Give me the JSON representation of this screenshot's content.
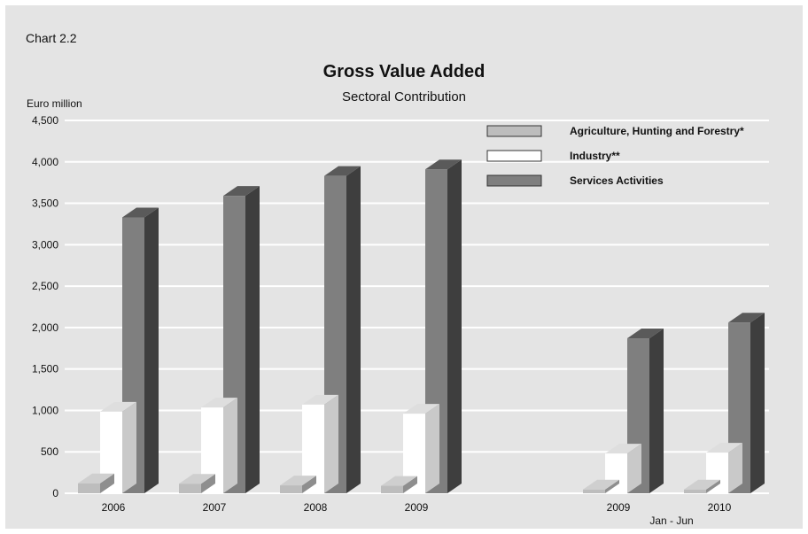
{
  "header": {
    "label": "Chart 2.2",
    "title": "Gross Value Added",
    "subtitle": "Sectoral Contribution",
    "y_unit": "Euro million",
    "footnote": "Jan - Jun"
  },
  "colors": {
    "background": "#e4e4e4",
    "agriculture": "#bdbdbd",
    "industry": "#ffffff",
    "services": "#7f7f7f",
    "services_side": "#3e3e3e"
  },
  "chart_data": {
    "type": "bar",
    "title": "Gross Value Added",
    "subtitle": "Sectoral Contribution",
    "ylabel": "Euro million",
    "xlabel": "",
    "categories": [
      "2006",
      "2007",
      "2008",
      "2009",
      "2009",
      "2010"
    ],
    "category_note": "Jan - Jun",
    "ylim": [
      0,
      4500
    ],
    "yticks": [
      "0",
      "500",
      "1,000",
      "1,500",
      "2,000",
      "2,500",
      "3,000",
      "3,500",
      "4,000",
      "4,500"
    ],
    "grid": true,
    "legend_position": "top-right",
    "series": [
      {
        "name": "Agriculture, Hunting and Forestry*",
        "values": [
          120,
          115,
          95,
          90,
          45,
          45
        ]
      },
      {
        "name": "Industry**",
        "values": [
          985,
          1035,
          1070,
          960,
          480,
          490
        ]
      },
      {
        "name": "Services Activities",
        "values": [
          3330,
          3590,
          3830,
          3910,
          1870,
          2060
        ]
      }
    ]
  }
}
